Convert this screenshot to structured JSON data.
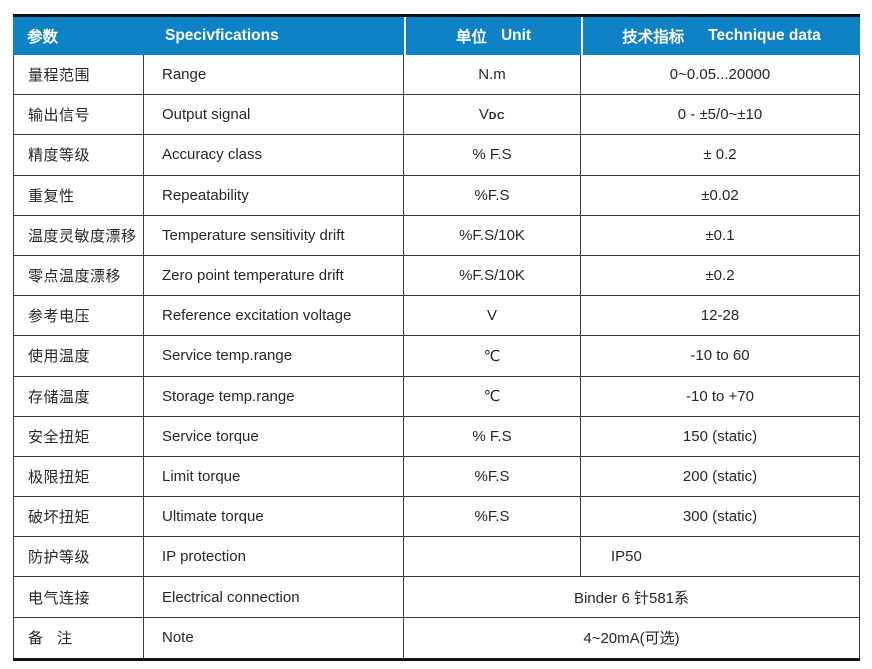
{
  "table": {
    "header": {
      "param_cn": "参数",
      "spec_en": "Specivfications",
      "unit_cn": "单位",
      "unit_en": "Unit",
      "tech_cn": "技术指标",
      "tech_en": "Technique data"
    },
    "rows": [
      {
        "cn": "量程范围",
        "en": "Range",
        "unit": "N.m",
        "value": "0~0.05...20000"
      },
      {
        "cn": "输出信号",
        "en": "Output signal",
        "unit": "V",
        "unit_sub": "DC",
        "value": "0 - ±5/0~±10"
      },
      {
        "cn": "精度等级",
        "en": "Accuracy class",
        "unit": "% F.S",
        "value": "± 0.2"
      },
      {
        "cn": "重复性",
        "en": "Repeatability",
        "unit": "%F.S",
        "value": "±0.02"
      },
      {
        "cn": "温度灵敏度漂移",
        "en": "Temperature sensitivity drift",
        "unit": "%F.S/10K",
        "value": "±0.1"
      },
      {
        "cn": "零点温度漂移",
        "en": "Zero point temperature drift",
        "unit": "%F.S/10K",
        "value": "±0.2"
      },
      {
        "cn": "参考电压",
        "en": "Reference excitation voltage",
        "unit": "V",
        "value": "12-28"
      },
      {
        "cn": "使用温度",
        "en": "Service temp.range",
        "unit": "℃",
        "value": "-10 to 60"
      },
      {
        "cn": "存储温度",
        "en": "Storage temp.range",
        "unit": "℃",
        "value": "-10 to +70"
      },
      {
        "cn": "安全扭矩",
        "en": "Service torque",
        "unit": "% F.S",
        "value": "150 (static)"
      },
      {
        "cn": "极限扭矩",
        "en": "Limit torque",
        "unit": "%F.S",
        "value": "200 (static)"
      },
      {
        "cn": "破坏扭矩",
        "en": "Ultimate torque",
        "unit": "%F.S",
        "value": "300 (static)"
      },
      {
        "cn": "防护等级",
        "en": "IP protection",
        "unit": "",
        "value": "IP50"
      },
      {
        "cn": "电气连接",
        "en": "Electrical connection",
        "merged": "Binder 6 针581系"
      },
      {
        "cn": "备注",
        "en": "Note",
        "merged": "4~20mA(可选)"
      }
    ],
    "colors": {
      "header_bg": "#0F82C5",
      "header_text": "#FFFFFF",
      "grid_border": "#3C3C3C",
      "heavy_border": "#101010",
      "body_text": "#26262B"
    }
  }
}
